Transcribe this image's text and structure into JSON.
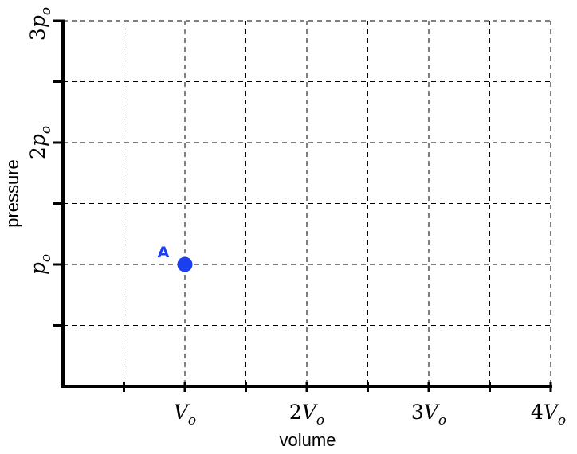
{
  "chart_data": {
    "type": "scatter",
    "xlabel": "volume",
    "ylabel": "pressure",
    "xlim": [
      0,
      4
    ],
    "ylim": [
      0,
      3
    ],
    "x_grid_step": 0.5,
    "y_grid_step": 0.5,
    "grid": true,
    "grid_style": "dashed",
    "x_ticks": [
      {
        "value": 1,
        "coef": "",
        "sym": "V",
        "sub": "o"
      },
      {
        "value": 2,
        "coef": "2",
        "sym": "V",
        "sub": "o"
      },
      {
        "value": 3,
        "coef": "3",
        "sym": "V",
        "sub": "o"
      },
      {
        "value": 4,
        "coef": "4",
        "sym": "V",
        "sub": "o"
      }
    ],
    "y_ticks": [
      {
        "value": 1,
        "coef": "",
        "sym": "p",
        "sub": "o"
      },
      {
        "value": 2,
        "coef": "2",
        "sym": "p",
        "sub": "o"
      },
      {
        "value": 3,
        "coef": "3",
        "sym": "p",
        "sub": "o"
      }
    ],
    "points": [
      {
        "label": "A",
        "x": 1,
        "y": 1,
        "color": "#1a3ff0"
      }
    ]
  }
}
